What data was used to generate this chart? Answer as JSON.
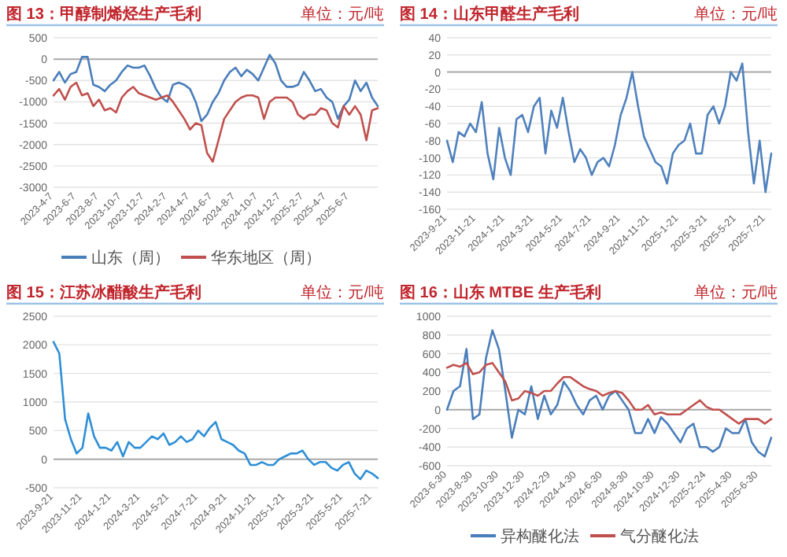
{
  "chart_data": [
    {
      "type": "line",
      "title": "图 13：甲醇制烯烃生产毛利",
      "subtitle": "单位：元/吨",
      "grid": "y",
      "legend": "bottom",
      "categories": [
        "2023-4-7",
        null,
        null,
        null,
        "2023-6-7",
        null,
        null,
        null,
        "2023-8-7",
        null,
        null,
        null,
        "2023-10-7",
        null,
        null,
        null,
        "2023-12-7",
        null,
        null,
        null,
        "2024-2-7",
        null,
        null,
        null,
        "2024-4-7",
        null,
        null,
        null,
        "2024-6-7",
        null,
        null,
        null,
        "2024-8-7",
        null,
        null,
        null,
        "2024-10-7",
        null,
        null,
        null,
        "2024-12-7",
        null,
        null,
        null,
        "2025-2-7",
        null,
        null,
        null,
        "2025-4-7",
        null,
        null,
        null,
        "2025-6-7",
        null,
        null,
        null,
        null,
        null
      ],
      "ylim": [
        -3000,
        500
      ],
      "yticks": [
        -3000,
        -2500,
        -2000,
        -1500,
        -1000,
        -500,
        0,
        500
      ],
      "series": [
        {
          "name": "山东（周）",
          "color": "#4a7ebb",
          "values": [
            -500,
            -300,
            -550,
            -350,
            -300,
            50,
            50,
            -600,
            -650,
            -750,
            -600,
            -500,
            -300,
            -150,
            -200,
            -200,
            -150,
            -400,
            -700,
            -900,
            -1000,
            -600,
            -550,
            -600,
            -700,
            -1000,
            -1450,
            -1300,
            -1000,
            -800,
            -500,
            -300,
            -200,
            -400,
            -250,
            -350,
            -500,
            -200,
            100,
            -100,
            -500,
            -650,
            -650,
            -600,
            -300,
            -500,
            -750,
            -700,
            -900,
            -1000,
            -1400,
            -1100,
            -950,
            -500,
            -750,
            -550,
            -900,
            -1100
          ]
        },
        {
          "name": "华东地区（周）",
          "color": "#c0504d",
          "values": [
            -850,
            -700,
            -950,
            -650,
            -550,
            -850,
            -800,
            -1100,
            -950,
            -1200,
            -1150,
            -1250,
            -900,
            -750,
            -650,
            -800,
            -850,
            -900,
            -950,
            -900,
            -850,
            -1000,
            -1200,
            -1400,
            -1650,
            -1500,
            -1550,
            -2200,
            -2400,
            -1900,
            -1400,
            -1200,
            -1000,
            -900,
            -850,
            -850,
            -900,
            -1400,
            -1000,
            -900,
            -900,
            -900,
            -1000,
            -1300,
            -1400,
            -1300,
            -1300,
            -1150,
            -1200,
            -1500,
            -1600,
            -1100,
            -1300,
            -1100,
            -1300,
            -1900,
            -1200,
            -1150
          ]
        }
      ]
    },
    {
      "type": "line",
      "title": "图 14：山东甲醛生产毛利",
      "subtitle": "单位：元/吨",
      "grid": "y",
      "categories": [
        "2023-9-21",
        null,
        null,
        null,
        null,
        "2023-11-21",
        null,
        null,
        null,
        null,
        "2024-1-21",
        null,
        null,
        null,
        null,
        "2024-3-21",
        null,
        null,
        null,
        null,
        "2024-5-21",
        null,
        null,
        null,
        null,
        "2024-7-21",
        null,
        null,
        null,
        null,
        "2024-9-21",
        null,
        null,
        null,
        null,
        "2024-11-21",
        null,
        null,
        null,
        null,
        "2025-1-21",
        null,
        null,
        null,
        null,
        "2025-3-21",
        null,
        null,
        null,
        null,
        "2025-5-21",
        null,
        null,
        null,
        null,
        "2025-7-21",
        null
      ],
      "ylim": [
        -160,
        40
      ],
      "yticks": [
        -160,
        -140,
        -120,
        -100,
        -80,
        -60,
        -40,
        -20,
        0,
        20,
        40
      ],
      "series": [
        {
          "color": "#4f81bd",
          "values": [
            -80,
            -105,
            -70,
            -75,
            -60,
            -70,
            -35,
            -95,
            -125,
            -65,
            -100,
            -120,
            -55,
            -50,
            -70,
            -40,
            -30,
            -95,
            -45,
            -65,
            -30,
            -70,
            -105,
            -90,
            -100,
            -120,
            -105,
            -100,
            -110,
            -85,
            -50,
            -30,
            0,
            -40,
            -75,
            -90,
            -105,
            -110,
            -130,
            -95,
            -85,
            -80,
            -60,
            -95,
            -95,
            -50,
            -40,
            -60,
            -40,
            0,
            -10,
            10,
            -70,
            -130,
            -80,
            -140,
            -95
          ]
        }
      ]
    },
    {
      "type": "line",
      "title": "图 15：江苏冰醋酸生产毛利",
      "subtitle": "单位：元/吨",
      "grid": "y",
      "categories": [
        "2023-9-21",
        null,
        null,
        null,
        null,
        "2023-11-21",
        null,
        null,
        null,
        null,
        "2024-1-21",
        null,
        null,
        null,
        null,
        "2024-3-21",
        null,
        null,
        null,
        null,
        "2024-5-21",
        null,
        null,
        null,
        null,
        "2024-7-21",
        null,
        null,
        null,
        null,
        "2024-9-21",
        null,
        null,
        null,
        null,
        "2024-11-21",
        null,
        null,
        null,
        null,
        "2025-1-21",
        null,
        null,
        null,
        null,
        "2025-3-21",
        null,
        null,
        null,
        null,
        "2025-5-21",
        null,
        null,
        null,
        null,
        "2025-7-21",
        null
      ],
      "ylim": [
        -500,
        2500
      ],
      "yticks": [
        -500,
        0,
        500,
        1000,
        1500,
        2000,
        2500
      ],
      "series": [
        {
          "color": "#2e8fd6",
          "values": [
            2050,
            1850,
            700,
            350,
            100,
            200,
            800,
            400,
            200,
            200,
            150,
            300,
            50,
            300,
            200,
            200,
            300,
            400,
            350,
            450,
            250,
            300,
            400,
            300,
            350,
            500,
            400,
            550,
            650,
            350,
            300,
            250,
            150,
            100,
            -100,
            -100,
            -50,
            -100,
            -100,
            0,
            50,
            100,
            100,
            150,
            0,
            -100,
            -50,
            -50,
            -150,
            -200,
            -100,
            -50,
            -250,
            -350,
            -200,
            -250,
            -330
          ]
        }
      ]
    },
    {
      "type": "line",
      "title": "图 16：山东 MTBE 生产毛利",
      "subtitle": "单位：元/吨",
      "grid": "y",
      "legend": "bottom",
      "categories": [
        "2023-6-30",
        null,
        null,
        null,
        "2023-8-30",
        null,
        null,
        null,
        "2023-10-30",
        null,
        null,
        null,
        "2023-12-30",
        null,
        null,
        null,
        "2024-2-29",
        null,
        null,
        null,
        "2024-4-30",
        null,
        null,
        null,
        "2024-6-30",
        null,
        null,
        null,
        "2024-8-30",
        null,
        null,
        null,
        "2024-10-30",
        null,
        null,
        null,
        "2024-12-30",
        null,
        null,
        null,
        "2025-2-24",
        null,
        null,
        null,
        "2025-4-30",
        null,
        null,
        null,
        "2025-6-30",
        null,
        null
      ],
      "ylim": [
        -600,
        1000
      ],
      "yticks": [
        -600,
        -400,
        -200,
        0,
        200,
        400,
        600,
        800,
        1000
      ],
      "series": [
        {
          "name": "异构醚化法",
          "color": "#4a7ebb",
          "values": [
            0,
            200,
            250,
            650,
            -100,
            -50,
            550,
            850,
            650,
            200,
            -300,
            0,
            -50,
            250,
            -100,
            150,
            -50,
            50,
            300,
            200,
            50,
            -50,
            100,
            150,
            0,
            150,
            200,
            100,
            0,
            -250,
            -250,
            -100,
            -250,
            -80,
            -150,
            -250,
            -350,
            -200,
            -150,
            -400,
            -400,
            -450,
            -400,
            -200,
            -250,
            -250,
            -100,
            -350,
            -450,
            -500,
            -300
          ]
        },
        {
          "name": "气分醚化法",
          "color": "#c0504d",
          "values": [
            450,
            480,
            460,
            500,
            380,
            400,
            480,
            500,
            400,
            300,
            100,
            120,
            200,
            180,
            150,
            200,
            200,
            280,
            350,
            350,
            300,
            250,
            220,
            200,
            150,
            180,
            200,
            180,
            100,
            0,
            0,
            50,
            -50,
            -30,
            -50,
            -50,
            -50,
            0,
            50,
            100,
            30,
            0,
            0,
            -50,
            -100,
            -150,
            -100,
            -100,
            -100,
            -150,
            -100
          ]
        }
      ]
    }
  ]
}
